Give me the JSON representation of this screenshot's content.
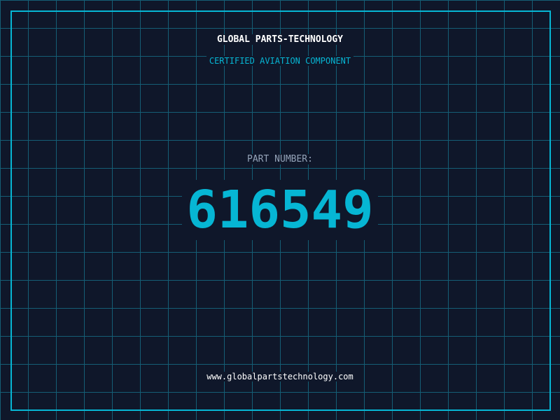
{
  "company": "GLOBAL PARTS-TECHNOLOGY",
  "subtitle": "CERTIFIED AVIATION COMPONENT",
  "part_label": "PART NUMBER:",
  "part_number": "616549",
  "website": "www.globalpartstechnology.com",
  "colors": {
    "background": "#0f172a",
    "accent": "#06b6d4",
    "grid": "#155e75"
  }
}
